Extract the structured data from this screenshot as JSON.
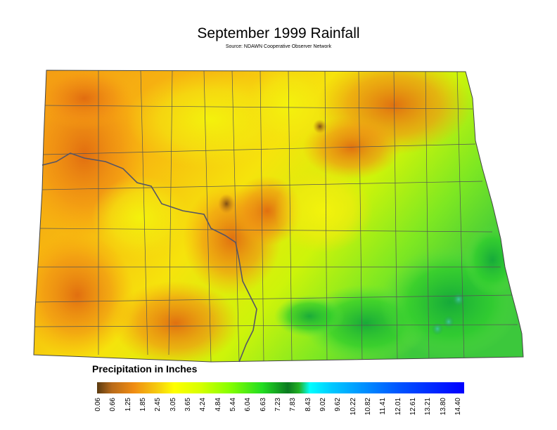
{
  "title": "September 1999 Rainfall",
  "subtitle": "Source: NDAWN Cooperative Observer Network",
  "legend": {
    "title": "Precipitation in Inches",
    "ticks": [
      "0.06",
      "0.66",
      "1.25",
      "1.85",
      "2.45",
      "3.05",
      "3.65",
      "4.24",
      "4.84",
      "5.44",
      "6.04",
      "6.63",
      "7.23",
      "7.83",
      "8.43",
      "9.02",
      "9.62",
      "10.22",
      "10.82",
      "11.41",
      "12.01",
      "12.61",
      "13.21",
      "13.80",
      "14.40"
    ]
  },
  "colors": {
    "low": "#f08c12",
    "mid": "#ffff00",
    "high": "#22cc22",
    "max": "#0000ff"
  }
}
